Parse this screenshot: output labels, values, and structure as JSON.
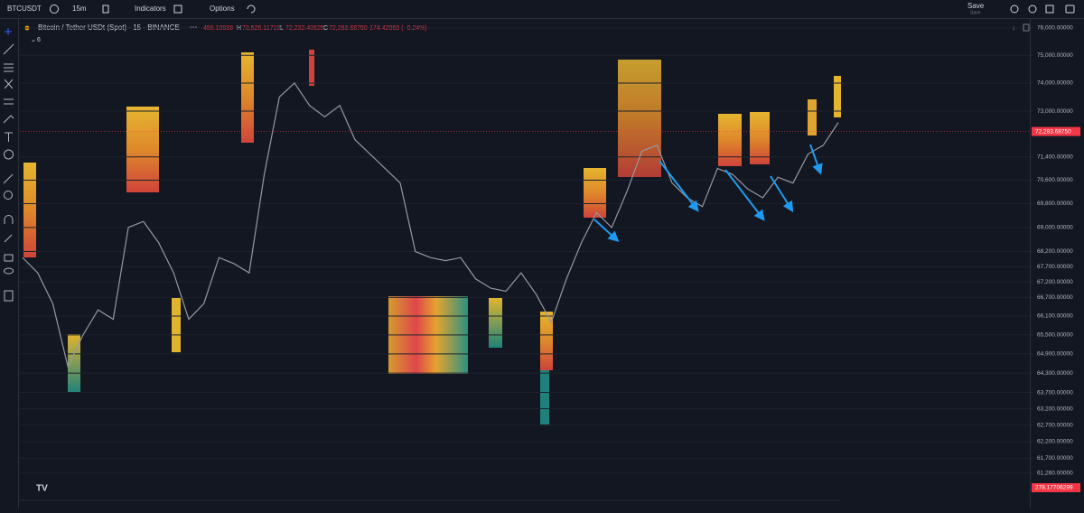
{
  "toolbar": {
    "symbol": "BTCUSDT",
    "interval": "15m",
    "indicators": "Indicators",
    "options": "Options",
    "save": "Save",
    "save_sub": "Save"
  },
  "legend": {
    "title": "Bitcoin / Tether USDt (Spot) · 15 · BINANCE",
    "open": "458.10938",
    "high_key": "H",
    "high": "73,526.11719",
    "low_key": "L",
    "low": "72,232.40625",
    "close_key": "C",
    "close": "72,283.68750",
    "change": "−174.42969 (−0.24%)",
    "indicator_count": "6"
  },
  "chart_data": {
    "type": "line",
    "color": "#9598a1",
    "log_scale": true,
    "values": [
      68000,
      67500,
      66500,
      64500,
      65500,
      66300,
      66000,
      69000,
      69200,
      68500,
      67500,
      66000,
      66500,
      68000,
      67800,
      67500,
      70800,
      73500,
      74000,
      73200,
      72800,
      73200,
      72000,
      71500,
      71000,
      70500,
      68200,
      68000,
      67900,
      68000,
      67300,
      67000,
      66900,
      67500,
      66800,
      65900,
      67300,
      68500,
      69500,
      69000,
      70200,
      71600,
      71800,
      70500,
      70000,
      69700,
      71000,
      70800,
      70300,
      70000,
      70700,
      70500,
      71500,
      71800,
      72600
    ],
    "ylim": [
      60430,
      76300
    ],
    "yticks": [
      {
        "value": 76000,
        "label": "76,000.00000"
      },
      {
        "value": 75000,
        "label": "75,000.00000"
      },
      {
        "value": 74000,
        "label": "74,000.00000"
      },
      {
        "value": 73000,
        "label": "73,000.00000"
      },
      {
        "value": 71400,
        "label": "71,400.00000"
      },
      {
        "value": 70600,
        "label": "70,600.00000"
      },
      {
        "value": 69800,
        "label": "69,800.00000"
      },
      {
        "value": 69000,
        "label": "69,000.00000"
      },
      {
        "value": 68200,
        "label": "68,200.00000"
      },
      {
        "value": 67700,
        "label": "67,700.00000"
      },
      {
        "value": 67200,
        "label": "67,200.00000"
      },
      {
        "value": 66700,
        "label": "66,700.00000"
      },
      {
        "value": 66100,
        "label": "66,100.00000"
      },
      {
        "value": 65500,
        "label": "65,500.00000"
      },
      {
        "value": 64900,
        "label": "64,900.00000"
      },
      {
        "value": 64300,
        "label": "64,300.00000"
      },
      {
        "value": 63700,
        "label": "63,700.00000"
      },
      {
        "value": 63200,
        "label": "63,200.00000"
      },
      {
        "value": 62700,
        "label": "62,700.00000"
      },
      {
        "value": 62200,
        "label": "62,200.00000"
      },
      {
        "value": 61700,
        "label": "61,700.00000"
      },
      {
        "value": 61260,
        "label": "61,260.00000"
      }
    ],
    "last_price": {
      "value": 72283.6875,
      "label": "72,283.68750"
    },
    "volume_label": "278.17706299",
    "last_color": "#f23645"
  }
}
